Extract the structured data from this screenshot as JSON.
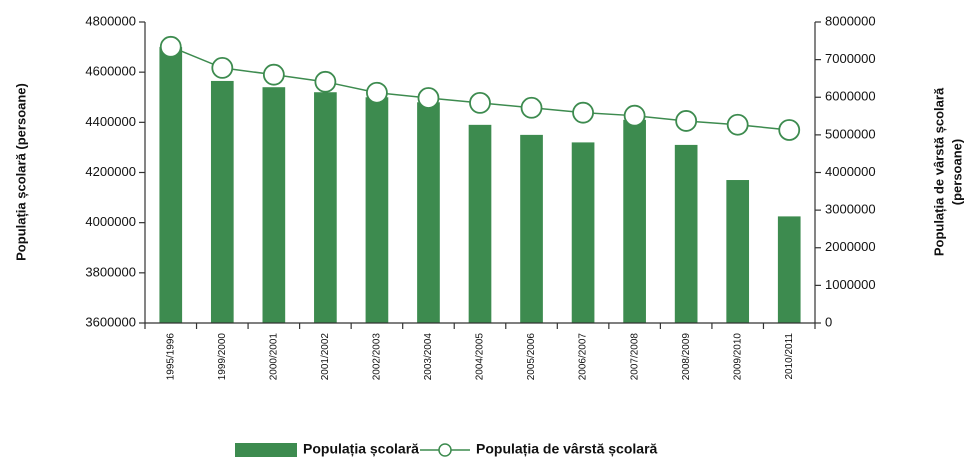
{
  "chart_data": {
    "type": "bar_line",
    "y_label": "Populația școlară (persoane)",
    "y2_label": [
      "Populația de vârstă școlară",
      "(persoane)"
    ],
    "categories": [
      "1995/1996",
      "1999/2000",
      "2000/2001",
      "2001/2002",
      "2002/2003",
      "2003/2004",
      "2004/2005",
      "2005/2006",
      "2006/2007",
      "2007/2008",
      "2008/2009",
      "2009/2010",
      "2010/2011"
    ],
    "series": [
      {
        "name": "Populația școlară",
        "type": "bar",
        "color": "#3d8b4f",
        "values": [
          4700000,
          4565000,
          4540000,
          4520000,
          4500000,
          4480000,
          4390000,
          4350000,
          4320000,
          4410000,
          4310000,
          4170000,
          4025000
        ]
      },
      {
        "name": "Populația de vârstă școlară",
        "type": "line",
        "axis": "y2",
        "color": "#3d8b4f",
        "values": [
          7340000,
          6780000,
          6600000,
          6410000,
          6120000,
          5980000,
          5850000,
          5720000,
          5590000,
          5510000,
          5370000,
          5270000,
          5130000
        ]
      }
    ],
    "ylim": [
      3600000,
      4800000
    ],
    "yticks": [
      3600000,
      3800000,
      4000000,
      4200000,
      4400000,
      4600000,
      4800000
    ],
    "y2lim": [
      0,
      8000000
    ],
    "y2ticks": [
      0,
      1000000,
      2000000,
      3000000,
      4000000,
      5000000,
      6000000,
      7000000,
      8000000
    ],
    "grid": false
  }
}
